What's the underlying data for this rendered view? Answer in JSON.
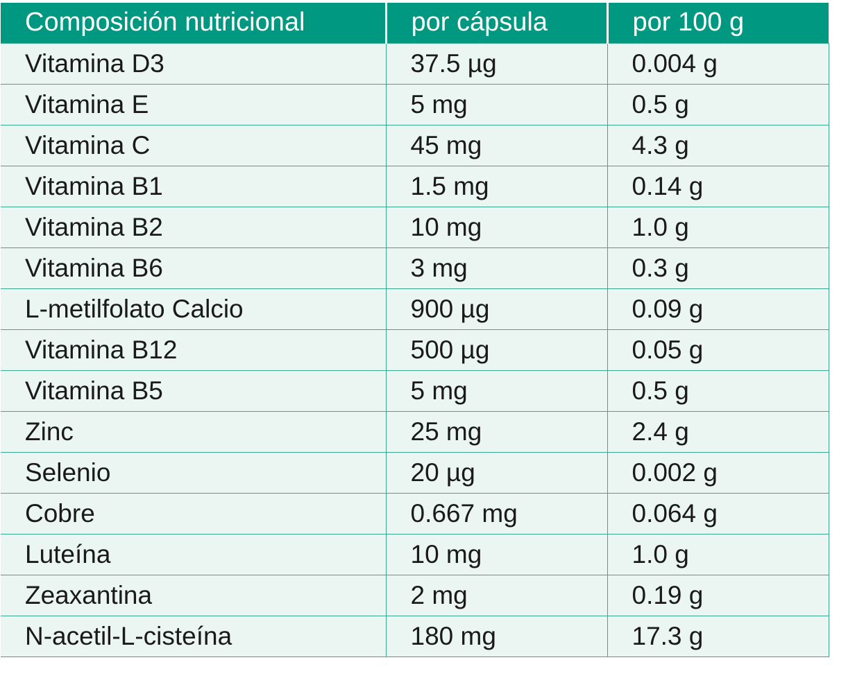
{
  "table": {
    "headers": [
      "Composición nutricional",
      "por cápsula",
      "por 100 g"
    ],
    "rows": [
      [
        "Vitamina D3",
        "37.5 µg",
        "0.004 g"
      ],
      [
        "Vitamina E",
        "5 mg",
        "0.5 g"
      ],
      [
        "Vitamina C",
        "45 mg",
        "4.3 g"
      ],
      [
        "Vitamina B1",
        "1.5 mg",
        "0.14 g"
      ],
      [
        "Vitamina B2",
        "10 mg",
        "1.0 g"
      ],
      [
        "Vitamina B6",
        "3 mg",
        "0.3 g"
      ],
      [
        "L-metilfolato Calcio",
        "900 µg",
        "0.09 g"
      ],
      [
        "Vitamina B12",
        "500 µg",
        "0.05 g"
      ],
      [
        "Vitamina B5",
        "5 mg",
        "0.5 g"
      ],
      [
        "Zinc",
        "25 mg",
        "2.4 g"
      ],
      [
        "Selenio",
        "20 µg",
        "0.002 g"
      ],
      [
        "Cobre",
        "0.667 mg",
        "0.064 g"
      ],
      [
        "Luteína",
        "10 mg",
        "1.0 g"
      ],
      [
        "Zeaxantina",
        "2 mg",
        "0.19 g"
      ],
      [
        "N-acetil-L-cisteína",
        "180 mg",
        "17.3 g"
      ]
    ]
  },
  "colors": {
    "header_background": "#009880",
    "header_text": "#ffffff",
    "row_background": "#ebf5f2",
    "grid_line": "#3aa88f",
    "body_text": "#1a1a1a"
  }
}
